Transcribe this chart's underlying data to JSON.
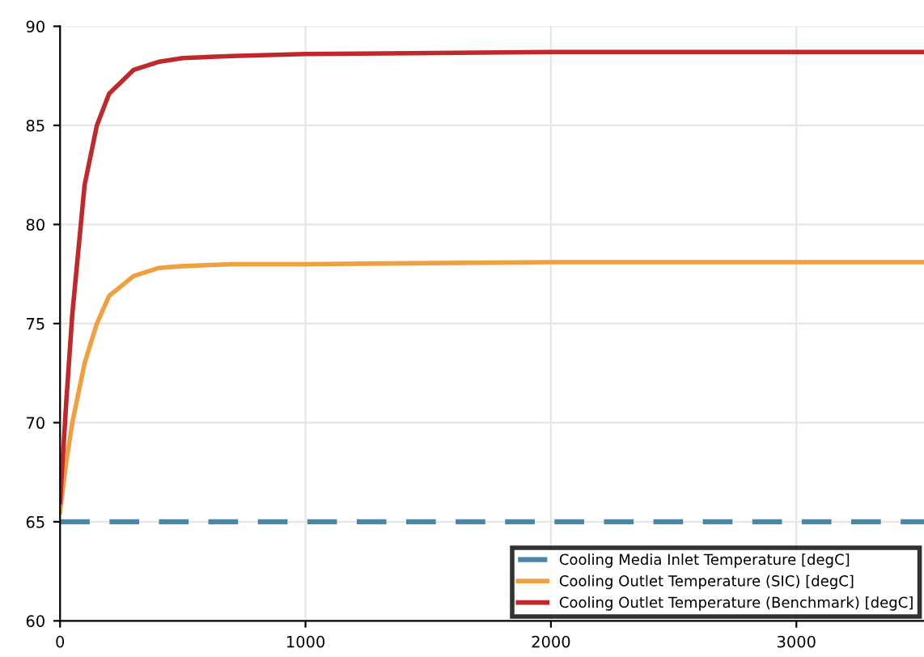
{
  "chart_data": {
    "type": "line",
    "xlim": [
      0,
      3520
    ],
    "ylim": [
      60,
      90
    ],
    "xticks": [
      0,
      1000,
      2000,
      3000
    ],
    "yticks": [
      60,
      65,
      70,
      75,
      80,
      85,
      90
    ],
    "grid": true,
    "legend": "bottom right",
    "line_style": "solid",
    "marker": "none",
    "series": [
      {
        "name": "Cooling Media Inlet Temperature [degC]",
        "color": "#4a86a8",
        "line_style": "dashed",
        "x": [
          0,
          3520
        ],
        "values": [
          65,
          65
        ]
      },
      {
        "name": "Cooling Outlet Temperature (SIC) [degC]",
        "color": "#f0a040",
        "x": [
          0,
          25,
          50,
          100,
          150,
          200,
          300,
          400,
          500,
          700,
          1000,
          2000,
          3520
        ],
        "values": [
          65.5,
          68,
          70,
          73,
          75,
          76.4,
          77.4,
          77.8,
          77.9,
          78,
          78,
          78.1,
          78.1
        ]
      },
      {
        "name": "Cooling Outlet Temperature (Benchmark) [degC]",
        "color": "#c0282c",
        "x": [
          0,
          25,
          50,
          100,
          150,
          200,
          300,
          400,
          500,
          700,
          1000,
          2000,
          3520
        ],
        "values": [
          66,
          71,
          75.5,
          82,
          85,
          86.6,
          87.8,
          88.2,
          88.4,
          88.5,
          88.6,
          88.7,
          88.7
        ]
      }
    ]
  }
}
